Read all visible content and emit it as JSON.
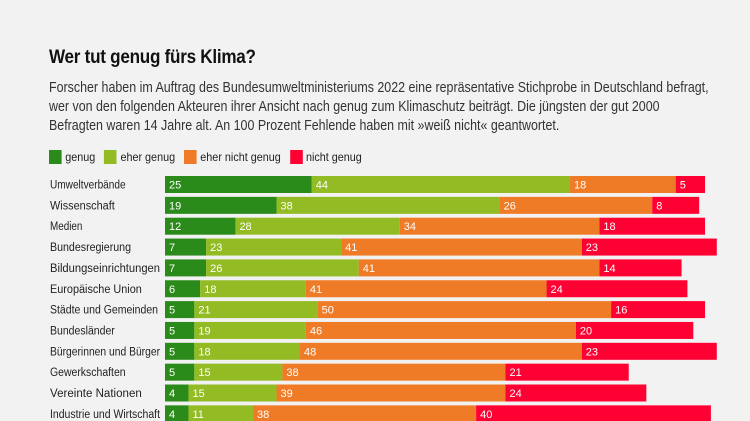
{
  "title": "Wer tut genug fürs Klima?",
  "subtitle": "Forscher haben im Auftrag des Bundesumweltministeriums 2022 eine repräsentative Stichprobe in Deutschland befragt, wer von den folgenden Akteuren ihrer Ansicht nach genug zum Klimaschutz beiträgt. Die jüngsten der gut 2000 Befragten waren 14 Jahre alt. An 100 Prozent Fehlende haben mit »weiß nicht« geantwortet.",
  "legend": [
    {
      "label": "genug",
      "color": "#2a8a1a"
    },
    {
      "label": "eher genug",
      "color": "#92bb24"
    },
    {
      "label": "eher nicht genug",
      "color": "#ef7b27"
    },
    {
      "label": "nicht genug",
      "color": "#ff0033"
    }
  ],
  "chart_data": {
    "type": "bar",
    "orientation": "horizontal",
    "stacked": true,
    "title": "Wer tut genug fürs Klima?",
    "xlabel": "",
    "ylabel": "",
    "unit": "Prozent",
    "legend_position": "top-left",
    "categories": [
      "Umweltverbände",
      "Wissenschaft",
      "Medien",
      "Bundesregierung",
      "Bildungseinrichtungen",
      "Europäische Union",
      "Städte und Gemeinden",
      "Bundesländer",
      "Bürgerinnen und Bürger",
      "Gewerkschaften",
      "Vereinte Nationen",
      "Industrie und Wirtschaft"
    ],
    "series": [
      {
        "name": "genug",
        "color": "#2a8a1a",
        "values": [
          25,
          19,
          12,
          7,
          7,
          6,
          5,
          5,
          5,
          5,
          4,
          4
        ]
      },
      {
        "name": "eher genug",
        "color": "#92bb24",
        "values": [
          44,
          38,
          28,
          23,
          26,
          18,
          21,
          19,
          18,
          15,
          15,
          11
        ]
      },
      {
        "name": "eher nicht genug",
        "color": "#ef7b27",
        "values": [
          18,
          26,
          34,
          41,
          41,
          41,
          50,
          46,
          48,
          38,
          39,
          38
        ]
      },
      {
        "name": "nicht genug",
        "color": "#ff0033",
        "values": [
          5,
          8,
          18,
          23,
          14,
          24,
          16,
          20,
          23,
          21,
          24,
          40
        ]
      }
    ],
    "xlim": [
      0,
      100
    ]
  }
}
